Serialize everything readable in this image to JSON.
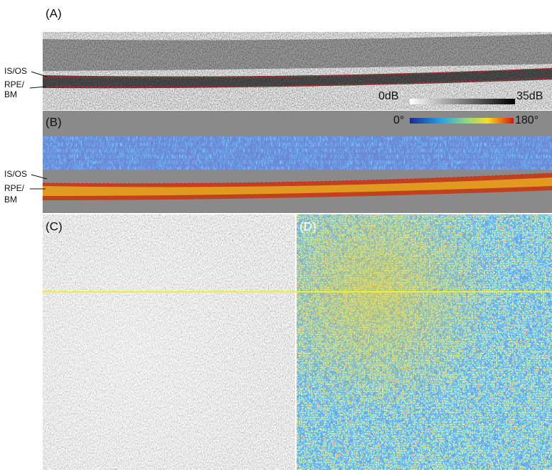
{
  "panels": [
    {
      "label": "(A)",
      "colorbar": {
        "min_label": "0dB",
        "max_label": "35dB"
      },
      "layers": [
        "IS/OS",
        "RPE/",
        "BM"
      ]
    },
    {
      "label": "(B)",
      "colorbar": {
        "min_label": "0°",
        "max_label": "180°"
      },
      "layers": [
        "IS/OS",
        "RPE/",
        "BM"
      ]
    },
    {
      "label": "(C)"
    },
    {
      "label": "(D)"
    }
  ]
}
